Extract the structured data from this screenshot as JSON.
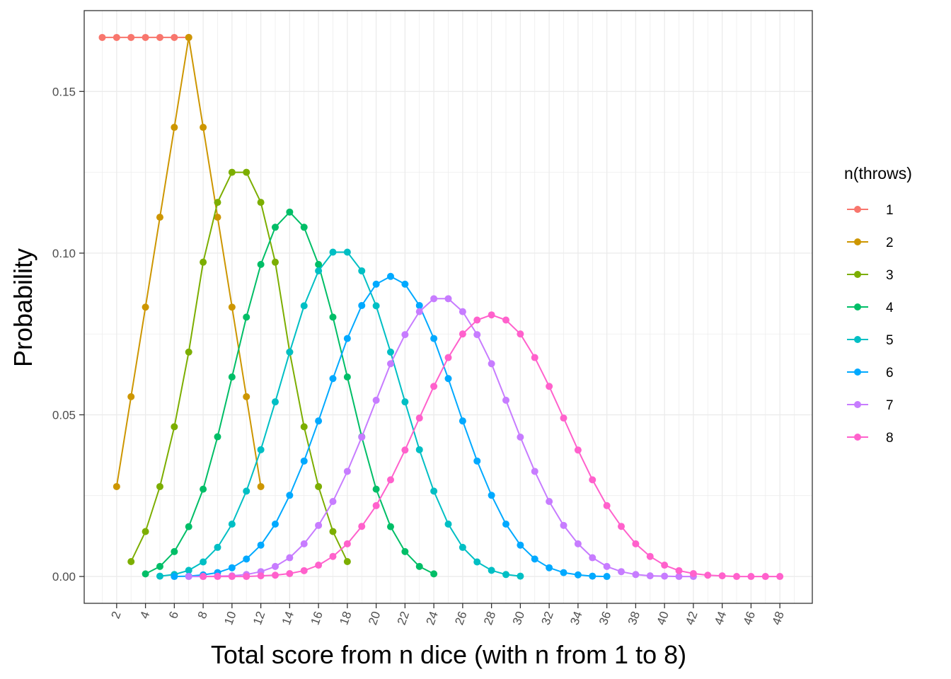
{
  "chart_data": {
    "type": "line",
    "title": "",
    "xlabel": "Total score from n dice (with n from 1 to 8)",
    "ylabel": "Probability",
    "xlim": [
      -0.25,
      50.25
    ],
    "ylim": [
      -0.0083,
      0.175
    ],
    "x_tick_labels": [
      2,
      4,
      6,
      8,
      10,
      12,
      14,
      16,
      18,
      20,
      22,
      24,
      26,
      28,
      30,
      32,
      34,
      36,
      38,
      40,
      42,
      44,
      46,
      48
    ],
    "y_ticks": [
      0.0,
      0.05,
      0.1,
      0.15
    ],
    "y_tick_labels": [
      "0.00",
      "0.05",
      "0.10",
      "0.15"
    ],
    "grid": true,
    "legend": {
      "title": "n(throws)",
      "position": "right"
    },
    "series": [
      {
        "name": "1",
        "color": "#F8766D",
        "x": [
          1,
          2,
          3,
          4,
          5,
          6,
          7
        ],
        "values": [
          0.1667,
          0.1667,
          0.1667,
          0.1667,
          0.1667,
          0.1667,
          0.1667
        ]
      },
      {
        "name": "2",
        "color": "#CD9600",
        "x": [
          2,
          3,
          4,
          5,
          6,
          7,
          8,
          9,
          10,
          11,
          12
        ],
        "values": [
          0.0278,
          0.0556,
          0.0833,
          0.1111,
          0.1389,
          0.1667,
          0.1389,
          0.1111,
          0.0833,
          0.0556,
          0.0278
        ]
      },
      {
        "name": "3",
        "color": "#7CAE00",
        "x": [
          3,
          4,
          5,
          6,
          7,
          8,
          9,
          10,
          11,
          12,
          13,
          14,
          15,
          16,
          17,
          18
        ],
        "values": [
          0.0046,
          0.0139,
          0.0278,
          0.0463,
          0.0694,
          0.0972,
          0.1157,
          0.125,
          0.125,
          0.1157,
          0.0972,
          0.0694,
          0.0463,
          0.0278,
          0.0139,
          0.0046
        ]
      },
      {
        "name": "4",
        "color": "#00BE67",
        "x": [
          4,
          5,
          6,
          7,
          8,
          9,
          10,
          11,
          12,
          13,
          14,
          15,
          16,
          17,
          18,
          19,
          20,
          21,
          22,
          23,
          24
        ],
        "values": [
          0.0008,
          0.0031,
          0.0077,
          0.0154,
          0.027,
          0.0432,
          0.0617,
          0.0802,
          0.0965,
          0.108,
          0.1127,
          0.108,
          0.0965,
          0.0802,
          0.0617,
          0.0432,
          0.027,
          0.0154,
          0.0077,
          0.0031,
          0.0008
        ]
      },
      {
        "name": "5",
        "color": "#00BFC4",
        "x": [
          5,
          6,
          7,
          8,
          9,
          10,
          11,
          12,
          13,
          14,
          15,
          16,
          17,
          18,
          19,
          20,
          21,
          22,
          23,
          24,
          25,
          26,
          27,
          28,
          29,
          30
        ],
        "values": [
          0.0001,
          0.0006,
          0.0019,
          0.0045,
          0.009,
          0.0162,
          0.0264,
          0.0392,
          0.054,
          0.0694,
          0.0837,
          0.0945,
          0.1003,
          0.1003,
          0.0945,
          0.0837,
          0.0694,
          0.054,
          0.0392,
          0.0264,
          0.0162,
          0.009,
          0.0045,
          0.0019,
          0.0006,
          0.0001
        ]
      },
      {
        "name": "6",
        "color": "#00A9FF",
        "x": [
          6,
          7,
          8,
          9,
          10,
          11,
          12,
          13,
          14,
          15,
          16,
          17,
          18,
          19,
          20,
          21,
          22,
          23,
          24,
          25,
          26,
          27,
          28,
          29,
          30,
          31,
          32,
          33,
          34,
          35,
          36
        ],
        "values": [
          0.0,
          0.0001,
          0.0005,
          0.0012,
          0.0027,
          0.0054,
          0.0097,
          0.0162,
          0.0251,
          0.0357,
          0.0481,
          0.0612,
          0.0736,
          0.0838,
          0.0904,
          0.0928,
          0.0904,
          0.0838,
          0.0736,
          0.0612,
          0.0481,
          0.0357,
          0.0251,
          0.0162,
          0.0097,
          0.0054,
          0.0027,
          0.0012,
          0.0005,
          0.0001,
          0.0
        ]
      },
      {
        "name": "7",
        "color": "#C77CFF",
        "x": [
          7,
          8,
          9,
          10,
          11,
          12,
          13,
          14,
          15,
          16,
          17,
          18,
          19,
          20,
          21,
          22,
          23,
          24,
          25,
          26,
          27,
          28,
          29,
          30,
          31,
          32,
          33,
          34,
          35,
          36,
          37,
          38,
          39,
          40,
          41,
          42
        ],
        "values": [
          0.0,
          0.0,
          0.0001,
          0.0002,
          0.0006,
          0.0015,
          0.0031,
          0.0058,
          0.0101,
          0.0158,
          0.0232,
          0.0325,
          0.0431,
          0.0545,
          0.0658,
          0.0748,
          0.0819,
          0.0859,
          0.0859,
          0.0819,
          0.0748,
          0.0658,
          0.0545,
          0.0431,
          0.0325,
          0.0232,
          0.0158,
          0.0101,
          0.0058,
          0.0031,
          0.0015,
          0.0006,
          0.0002,
          0.0001,
          0.0,
          0.0
        ]
      },
      {
        "name": "8",
        "color": "#FF61CC",
        "x": [
          8,
          9,
          10,
          11,
          12,
          13,
          14,
          15,
          16,
          17,
          18,
          19,
          20,
          21,
          22,
          23,
          24,
          25,
          26,
          27,
          28,
          29,
          30,
          31,
          32,
          33,
          34,
          35,
          36,
          37,
          38,
          39,
          40,
          41,
          42,
          43,
          44,
          45,
          46,
          47,
          48
        ],
        "values": [
          0.0,
          0.0,
          0.0,
          0.0,
          0.0002,
          0.0004,
          0.0009,
          0.0018,
          0.0035,
          0.0062,
          0.0101,
          0.0155,
          0.0219,
          0.0299,
          0.0391,
          0.049,
          0.0588,
          0.0677,
          0.075,
          0.0793,
          0.0809,
          0.0793,
          0.075,
          0.0677,
          0.0588,
          0.049,
          0.0391,
          0.0299,
          0.0219,
          0.0155,
          0.0101,
          0.0062,
          0.0035,
          0.0018,
          0.0009,
          0.0004,
          0.0002,
          0.0,
          0.0,
          0.0,
          0.0
        ]
      }
    ]
  }
}
